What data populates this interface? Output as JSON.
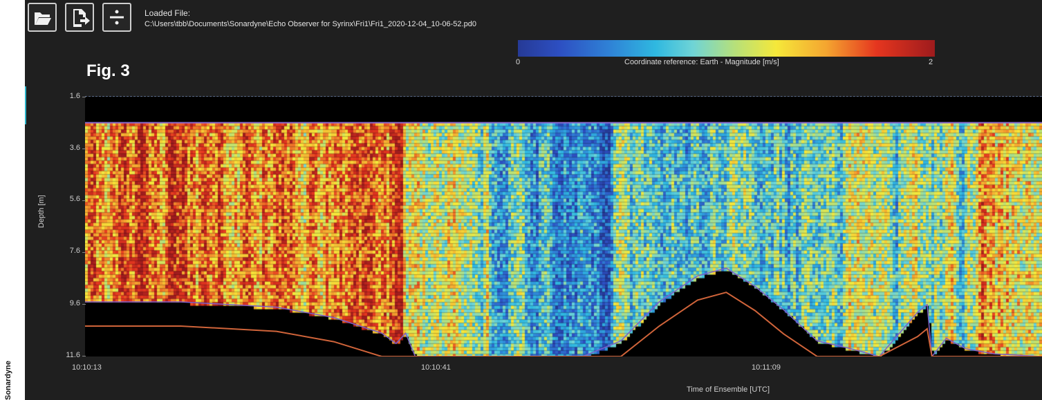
{
  "credit": "Sonardyne",
  "toolbar": {
    "buttons": [
      {
        "name": "open-file-button",
        "icon": "folder-open-icon"
      },
      {
        "name": "export-button",
        "icon": "export-icon"
      },
      {
        "name": "divide-button",
        "icon": "divide-icon"
      }
    ]
  },
  "file": {
    "label": "Loaded File:",
    "path": "C:\\Users\\tbb\\Documents\\Sonardyne\\Echo Observer for Syrinx\\Fri1\\Fri1_2020-12-04_10-06-52.pd0"
  },
  "figure_label": "Fig. 3",
  "colorbar": {
    "min": "0",
    "max": "2",
    "title": "Coordinate reference: Earth - Magnitude [m/s]",
    "colors": [
      "#263a96",
      "#2fb8e0",
      "#f5e83a",
      "#e5361f",
      "#9e1b1d"
    ]
  },
  "chart_data": {
    "type": "heatmap",
    "title": "",
    "xlabel": "Time of Ensemble [UTC]",
    "ylabel": "Depth [m]",
    "x_ticks": [
      "10:10:13",
      "10:10:41",
      "10:11:09"
    ],
    "y_ticks": [
      "1.6",
      "3.6",
      "5.6",
      "7.6",
      "9.6",
      "11.6"
    ],
    "ylim": [
      1.6,
      11.6
    ],
    "zlim": [
      0,
      2
    ],
    "z_label": "Coordinate reference: Earth - Magnitude [m/s]",
    "surface_depth": 2.6,
    "bottom_profile": [
      {
        "t": 0.0,
        "depth": 9.5
      },
      {
        "t": 0.1,
        "depth": 9.5
      },
      {
        "t": 0.2,
        "depth": 9.7
      },
      {
        "t": 0.26,
        "depth": 10.1
      },
      {
        "t": 0.31,
        "depth": 10.7
      },
      {
        "t": 0.325,
        "depth": 11.1
      },
      {
        "t": 0.335,
        "depth": 10.7
      },
      {
        "t": 0.345,
        "depth": 11.6
      },
      {
        "t": 0.52,
        "depth": 11.6
      },
      {
        "t": 0.56,
        "depth": 11.0
      },
      {
        "t": 0.6,
        "depth": 9.5
      },
      {
        "t": 0.64,
        "depth": 8.5
      },
      {
        "t": 0.67,
        "depth": 8.2
      },
      {
        "t": 0.7,
        "depth": 8.9
      },
      {
        "t": 0.73,
        "depth": 9.8
      },
      {
        "t": 0.765,
        "depth": 11.0
      },
      {
        "t": 0.8,
        "depth": 11.3
      },
      {
        "t": 0.83,
        "depth": 11.6
      },
      {
        "t": 0.87,
        "depth": 9.9
      },
      {
        "t": 0.88,
        "depth": 9.6
      },
      {
        "t": 0.885,
        "depth": 11.6
      },
      {
        "t": 0.9,
        "depth": 10.9
      },
      {
        "t": 0.92,
        "depth": 11.3
      },
      {
        "t": 0.95,
        "depth": 11.5
      },
      {
        "t": 1.0,
        "depth": 11.6
      }
    ],
    "regions": [
      {
        "t_start": 0.0,
        "t_end": 0.33,
        "level": 1.6
      },
      {
        "t_start": 0.33,
        "t_end": 0.42,
        "level": 1.1
      },
      {
        "t_start": 0.42,
        "t_end": 0.55,
        "level": 0.6
      },
      {
        "t_start": 0.55,
        "t_end": 0.75,
        "level": 0.75
      },
      {
        "t_start": 0.75,
        "t_end": 0.93,
        "level": 0.95
      },
      {
        "t_start": 0.93,
        "t_end": 1.0,
        "level": 1.4
      }
    ],
    "grid": false
  }
}
